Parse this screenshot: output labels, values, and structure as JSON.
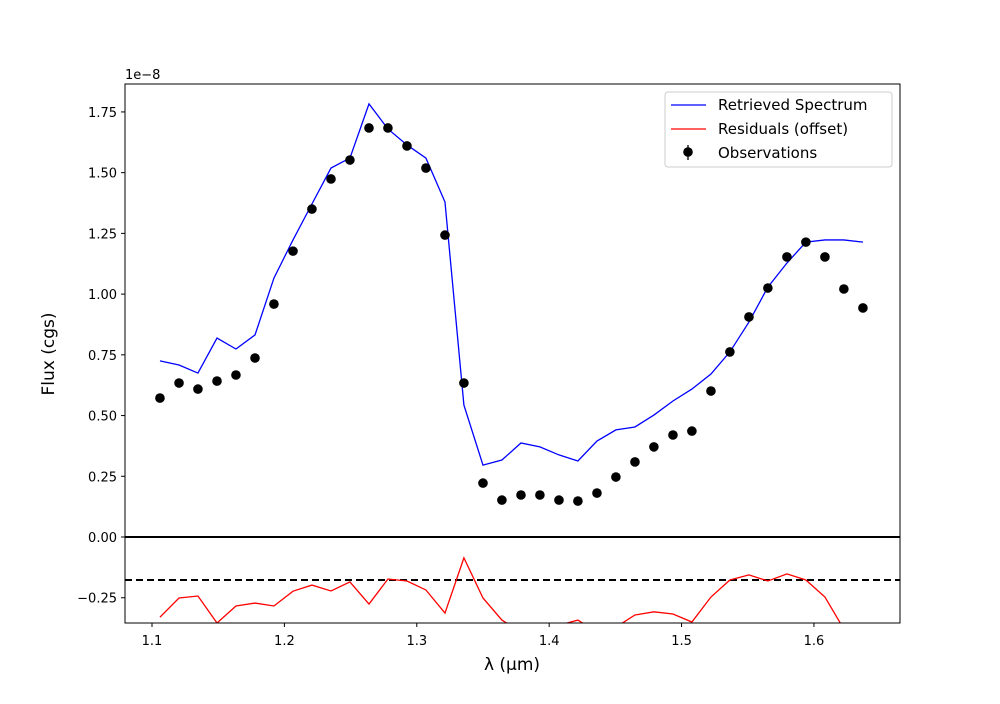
{
  "chart_data": {
    "type": "line",
    "title": "",
    "xlabel": "λ (μm)",
    "ylabel": "Flux (cgs)",
    "y_offset_label": "1e−8",
    "xlim": [
      1.0796,
      1.665
    ],
    "ylim": [
      -0.354,
      1.865
    ],
    "xticks": [
      1.1,
      1.2,
      1.3,
      1.4,
      1.5,
      1.6
    ],
    "xtick_labels": [
      "1.1",
      "1.2",
      "1.3",
      "1.4",
      "1.5",
      "1.6"
    ],
    "yticks": [
      -0.25,
      0,
      0.25,
      0.5,
      0.75,
      1.0,
      1.25,
      1.5,
      1.75
    ],
    "ytick_labels": [
      "−0.25",
      "0.00",
      "0.25",
      "0.50",
      "0.75",
      "1.00",
      "1.25",
      "1.50",
      "1.75"
    ],
    "grid": false,
    "legend_position": "top-right",
    "residual_offset": -0.177,
    "x": [
      1.106,
      1.1204,
      1.1347,
      1.1491,
      1.1634,
      1.1778,
      1.1921,
      1.2065,
      1.2208,
      1.2352,
      1.2495,
      1.2639,
      1.2782,
      1.2926,
      1.3069,
      1.3213,
      1.3356,
      1.35,
      1.3643,
      1.3787,
      1.393,
      1.4074,
      1.4217,
      1.4361,
      1.4504,
      1.4648,
      1.4791,
      1.4935,
      1.5078,
      1.5222,
      1.5365,
      1.5509,
      1.5652,
      1.5796,
      1.5939,
      1.6083,
      1.6226,
      1.637
    ],
    "series": [
      {
        "name": "Retrieved Spectrum",
        "kind": "line",
        "color": "#0000ff",
        "values": [
          0.725,
          0.708,
          0.675,
          0.819,
          0.774,
          0.832,
          1.066,
          1.223,
          1.371,
          1.519,
          1.56,
          1.783,
          1.68,
          1.614,
          1.56,
          1.379,
          0.543,
          0.296,
          0.317,
          0.387,
          0.371,
          0.338,
          0.313,
          0.395,
          0.441,
          0.453,
          0.502,
          0.56,
          0.609,
          0.671,
          0.762,
          0.885,
          1.029,
          1.128,
          1.214,
          1.223,
          1.223,
          1.214
        ]
      },
      {
        "name": "Residuals (offset)",
        "kind": "line",
        "color": "#ff0000",
        "derived": "observations - model + offset"
      },
      {
        "name": "Observations",
        "kind": "errorbar",
        "color": "#000000",
        "values": [
          0.572,
          0.634,
          0.609,
          0.642,
          0.667,
          0.737,
          0.959,
          1.177,
          1.35,
          1.474,
          1.552,
          1.684,
          1.684,
          1.61,
          1.519,
          1.243,
          0.634,
          0.222,
          0.152,
          0.173,
          0.173,
          0.152,
          0.148,
          0.181,
          0.247,
          0.309,
          0.371,
          0.42,
          0.436,
          0.601,
          0.762,
          0.906,
          1.025,
          1.153,
          1.214,
          1.153,
          1.021,
          0.943
        ]
      }
    ]
  }
}
